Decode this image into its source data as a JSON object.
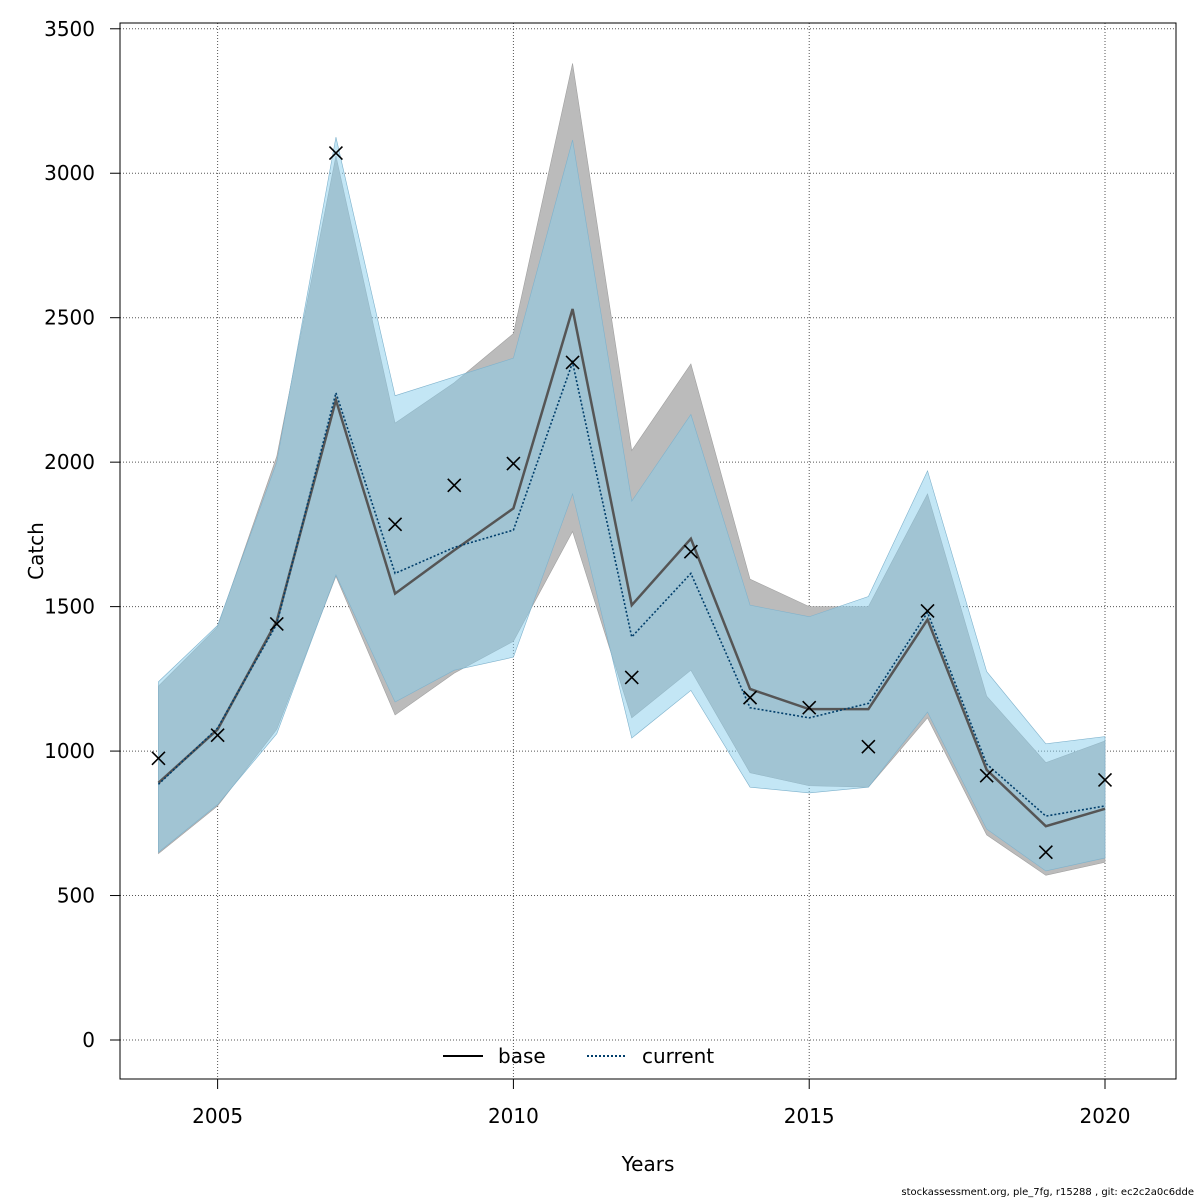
{
  "chart_data": {
    "type": "line",
    "xlabel": "Years",
    "ylabel": "Catch",
    "xlim": [
      2003.35,
      2021.2
    ],
    "ylim": [
      -135,
      3520
    ],
    "xticks": [
      2005,
      2010,
      2015,
      2020
    ],
    "yticks": [
      0,
      500,
      1000,
      1500,
      2000,
      2500,
      3000,
      3500
    ],
    "grid": true,
    "legend_position": "bottom-center",
    "x": [
      2004,
      2005,
      2006,
      2007,
      2008,
      2009,
      2010,
      2011,
      2012,
      2013,
      2014,
      2015,
      2016,
      2017,
      2018,
      2019,
      2020
    ],
    "series": [
      {
        "name": "base",
        "line_style": "solid",
        "color": "#555555",
        "band_color": "#bbbbbb",
        "values": [
          890,
          1075,
          1450,
          2215,
          1545,
          1695,
          1840,
          2530,
          1505,
          1735,
          1215,
          1145,
          1145,
          1455,
          935,
          740,
          800
        ],
        "lower": [
          645,
          810,
          1075,
          1605,
          1125,
          1270,
          1380,
          1760,
          1115,
          1280,
          925,
          880,
          875,
          1115,
          710,
          570,
          615
        ],
        "upper": [
          1225,
          1430,
          2020,
          3060,
          2135,
          2275,
          2445,
          3380,
          2040,
          2340,
          1595,
          1500,
          1500,
          1890,
          1190,
          960,
          1035
        ]
      },
      {
        "name": "current",
        "line_style": "dotted",
        "color": "#003e6b",
        "band_color": "#87ceeb",
        "values": [
          885,
          1080,
          1440,
          2240,
          1615,
          1705,
          1765,
          2345,
          1395,
          1615,
          1150,
          1115,
          1165,
          1480,
          955,
          775,
          810
        ],
        "lower": [
          650,
          815,
          1060,
          1610,
          1170,
          1280,
          1325,
          1890,
          1045,
          1210,
          875,
          855,
          875,
          1135,
          730,
          585,
          630
        ],
        "upper": [
          1240,
          1435,
          2000,
          3125,
          2230,
          2295,
          2360,
          3115,
          1865,
          2165,
          1505,
          1465,
          1535,
          1970,
          1275,
          1025,
          1050
        ]
      }
    ],
    "observations": {
      "marker": "x",
      "x": [
        2004,
        2005,
        2006,
        2007,
        2008,
        2009,
        2010,
        2011,
        2012,
        2013,
        2014,
        2015,
        2016,
        2017,
        2018,
        2019,
        2020
      ],
      "y": [
        975,
        1055,
        1440,
        3070,
        1785,
        1920,
        1995,
        2345,
        1255,
        1690,
        1185,
        1150,
        1015,
        1485,
        915,
        650,
        900
      ]
    }
  },
  "footer": "stockassessment.org, ple_7fg, r15288 , git: ec2c2a0c6dde"
}
